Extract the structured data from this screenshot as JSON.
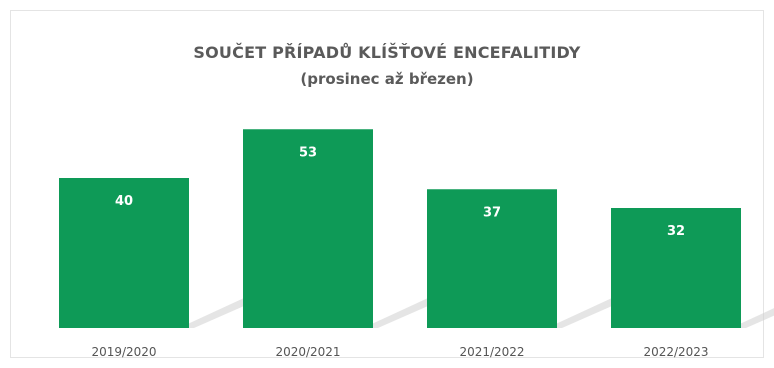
{
  "chart_data": {
    "type": "bar",
    "title": "SOUČET PŘÍPADŮ KLÍŠŤOVÉ ENCEFALITIDY",
    "subtitle": "(prosinec až březen)",
    "categories": [
      "2019/2020",
      "2020/2021",
      "2021/2022",
      "2022/2023"
    ],
    "values": [
      40,
      53,
      37,
      32
    ],
    "xlabel": "",
    "ylabel": "",
    "ylim": [
      0,
      80
    ],
    "grid": false,
    "legend": "none",
    "bar_color": "#0e9a57",
    "shadow_color": "#cfcfcf"
  }
}
